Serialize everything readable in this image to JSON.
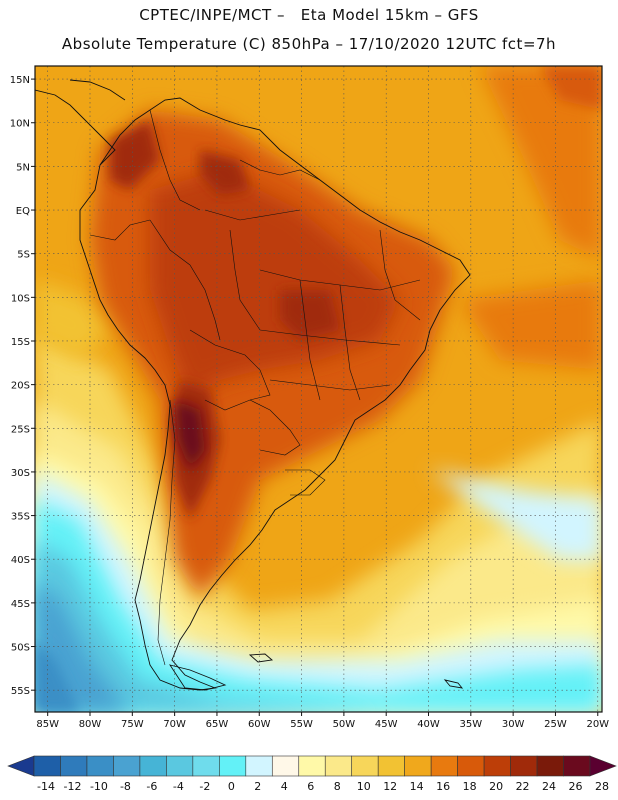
{
  "header": {
    "line1": "CPTEC/INPE/MCT –   Eta Model 15km – GFS",
    "line2": "Absolute Temperature (C) 850hPa – 17/10/2020 12UTC fct=7h"
  },
  "map": {
    "lat_labels": [
      "15N",
      "10N",
      "5N",
      "EQ",
      "5S",
      "10S",
      "15S",
      "20S",
      "25S",
      "30S",
      "35S",
      "40S",
      "45S",
      "50S",
      "55S"
    ],
    "lon_labels": [
      "85W",
      "80W",
      "75W",
      "70W",
      "65W",
      "60W",
      "55W",
      "50W",
      "45W",
      "40W",
      "35W",
      "30W",
      "25W",
      "20W"
    ],
    "lat_range": [
      16.5,
      -57.5
    ],
    "lon_range": [
      -86.5,
      -19.5
    ]
  },
  "colorbar": {
    "labels": [
      "-14",
      "-12",
      "-10",
      "-8",
      "-6",
      "-4",
      "-2",
      "0",
      "2",
      "4",
      "6",
      "8",
      "10",
      "12",
      "14",
      "16",
      "18",
      "20",
      "22",
      "24",
      "26",
      "28"
    ],
    "colors": [
      "#1a3a8f",
      "#1e5fa8",
      "#2f7bbb",
      "#3a8fc6",
      "#4aa2d1",
      "#46b4d6",
      "#5ac8e0",
      "#6fdcec",
      "#63f1f7",
      "#d2f5ff",
      "#fff8e8",
      "#fff9a8",
      "#fbe98a",
      "#f7d65a",
      "#f2c233",
      "#f0a81c",
      "#e87a0f",
      "#d85a0a",
      "#bd3e08",
      "#a02a0a",
      "#7a1a0a",
      "#6a0a1e",
      "#5a0030"
    ]
  },
  "palette": {
    "ocean_warm": "#efa516",
    "land_hot": "#c8550c",
    "land_hotter": "#a8330a",
    "land_hottest": "#7a1a10",
    "cool": "#fbe27a",
    "cold": "#63d6ee",
    "colder": "#3a8fc6",
    "coast": "#111111"
  }
}
